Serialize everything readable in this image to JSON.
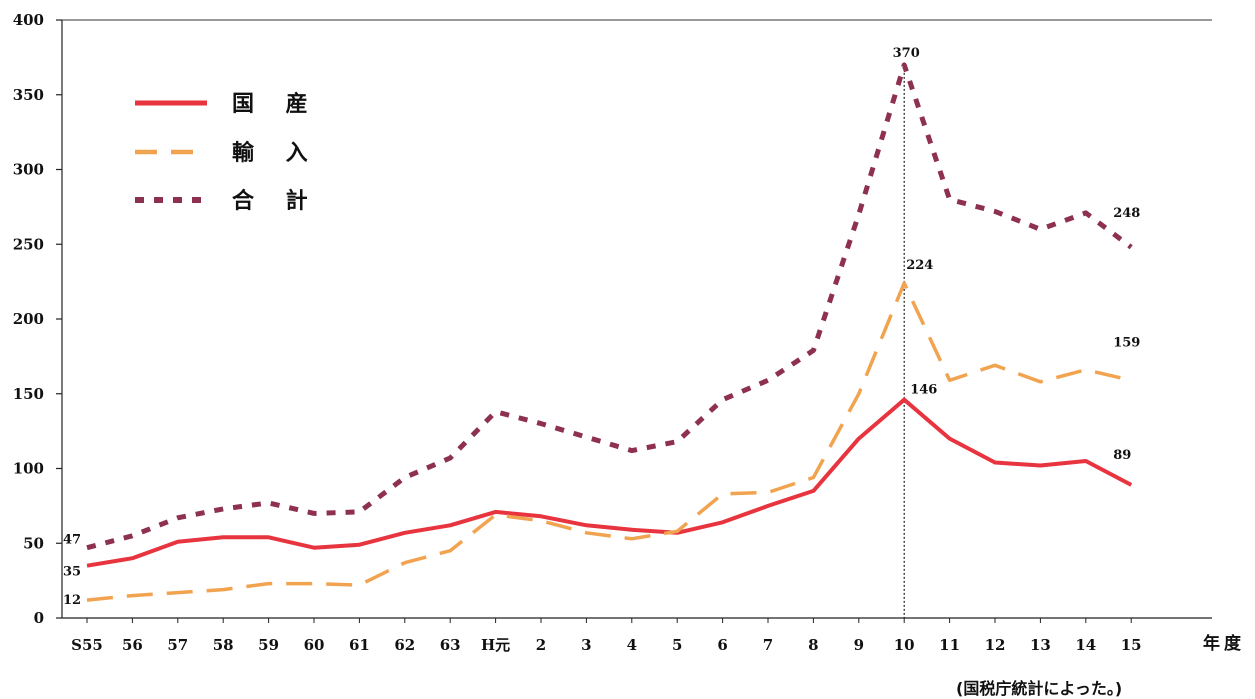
{
  "chart_data": {
    "type": "line",
    "categories": [
      "S55",
      "56",
      "57",
      "58",
      "59",
      "60",
      "61",
      "62",
      "63",
      "H元",
      "2",
      "3",
      "4",
      "5",
      "6",
      "7",
      "8",
      "9",
      "10",
      "11",
      "12",
      "13",
      "14",
      "15"
    ],
    "x_unit": "年度",
    "ylim": [
      0,
      400
    ],
    "yticks": [
      "0",
      "50",
      "100",
      "150",
      "200",
      "250",
      "300",
      "350",
      "400"
    ],
    "legend_position": "top-left",
    "series": [
      {
        "name": "国 産",
        "color": "#e8343e",
        "dash": "solid",
        "values": [
          35,
          40,
          51,
          54,
          54,
          47,
          49,
          57,
          62,
          71,
          68,
          62,
          59,
          57,
          64,
          75,
          85,
          120,
          146,
          120,
          104,
          102,
          105,
          89
        ]
      },
      {
        "name": "輸 入",
        "color": "#f2a34f",
        "dash": "dashed",
        "values": [
          12,
          15,
          17,
          19,
          23,
          23,
          22,
          37,
          45,
          69,
          65,
          57,
          53,
          58,
          83,
          84,
          94,
          150,
          224,
          159,
          169,
          158,
          166,
          159
        ]
      },
      {
        "name": "合 計",
        "color": "#8e3050",
        "dash": "dotted",
        "values": [
          47,
          55,
          67,
          73,
          77,
          70,
          71,
          94,
          107,
          138,
          130,
          121,
          112,
          118,
          146,
          159,
          179,
          270,
          370,
          280,
          272,
          260,
          271,
          248
        ]
      }
    ],
    "annotations": [
      "47",
      "35",
      "12",
      "370",
      "224",
      "146",
      "248",
      "159",
      "89"
    ],
    "reference_line_category": "10",
    "source_note": "(国税庁統計によった。)"
  }
}
